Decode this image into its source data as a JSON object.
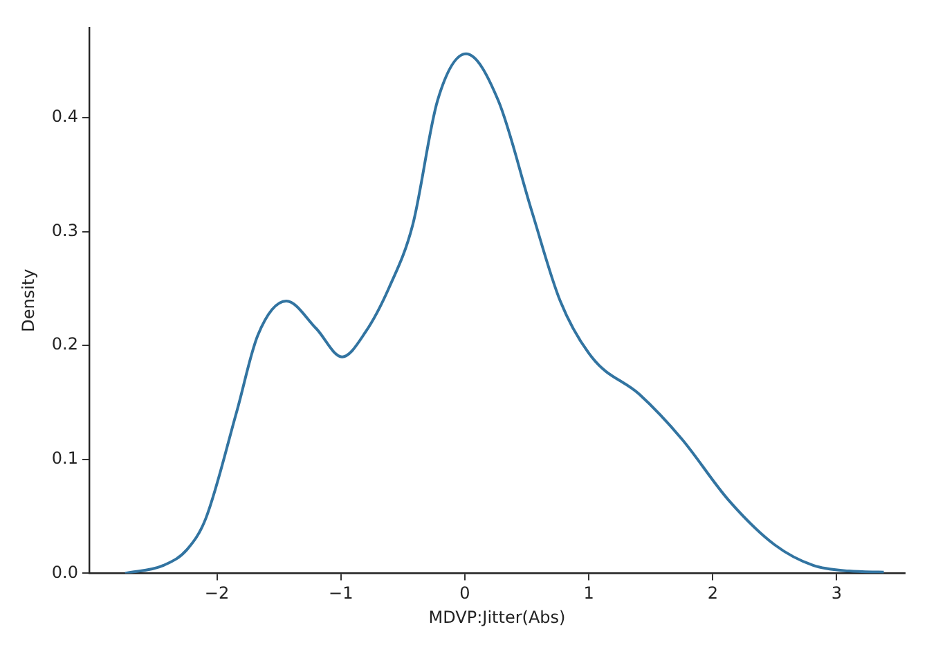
{
  "chart_data": {
    "type": "line",
    "xlabel": "MDVP:Jitter(Abs)",
    "ylabel": "Density",
    "xlim": [
      -3.03,
      3.55
    ],
    "ylim": [
      0,
      0.479
    ],
    "xticks": [
      -2,
      -1,
      0,
      1,
      2,
      3
    ],
    "yticks": [
      {
        "value": 0,
        "label": "0.0"
      },
      0.1,
      0.2,
      0.3,
      0.4
    ],
    "grid": false,
    "marker": "none",
    "line_style": "solid",
    "series": [
      {
        "color": "#3274a1",
        "x": [
          -2.74,
          -2.43,
          -2.24,
          -2.09,
          -1.84,
          -1.67,
          -1.44,
          -1.2,
          -0.99,
          -0.8,
          -0.61,
          -0.42,
          -0.22,
          0.01,
          0.27,
          0.54,
          0.77,
          1.03,
          1.41,
          1.75,
          2.13,
          2.5,
          2.81,
          3.1,
          3.38
        ],
        "values": [
          0,
          0.007,
          0.021,
          0.048,
          0.142,
          0.209,
          0.239,
          0.215,
          0.19,
          0.212,
          0.251,
          0.306,
          0.415,
          0.456,
          0.415,
          0.318,
          0.239,
          0.189,
          0.157,
          0.118,
          0.064,
          0.025,
          0.007,
          0.002,
          0.001
        ]
      }
    ]
  }
}
